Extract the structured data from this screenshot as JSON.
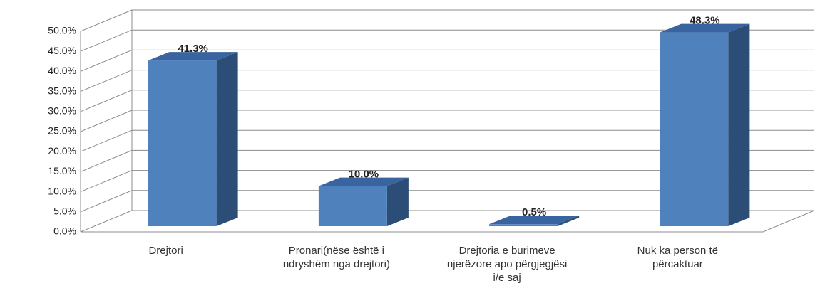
{
  "chart_data": {
    "type": "bar3d",
    "categories": [
      "Drejtori",
      "Pronari(nëse është i ndryshëm nga drejtori)",
      "Drejtoria e burimeve njerëzore apo përgjegjësi i/e saj",
      "Nuk ka person të përcaktuar"
    ],
    "values": [
      41.3,
      10.0,
      0.5,
      48.3
    ],
    "value_labels": [
      "41.3%",
      "10.0%",
      "0.5%",
      "48.3%"
    ],
    "color": "#4f81bd",
    "ylim": [
      0,
      50
    ],
    "yticks": [
      {
        "value": 0,
        "label": "0.0%"
      },
      {
        "value": 5,
        "label": "5.0%"
      },
      {
        "value": 10,
        "label": "10.0%"
      },
      {
        "value": 15,
        "label": "15.0%"
      },
      {
        "value": 20,
        "label": "20.0%"
      },
      {
        "value": 25,
        "label": "25.0%"
      },
      {
        "value": 30,
        "label": "30.0%"
      },
      {
        "value": 35,
        "label": "35.0%"
      },
      {
        "value": 40,
        "label": "40.0%"
      },
      {
        "value": 45,
        "label": "45.0%"
      },
      {
        "value": 50,
        "label": "50.0%"
      }
    ],
    "grid": true
  }
}
